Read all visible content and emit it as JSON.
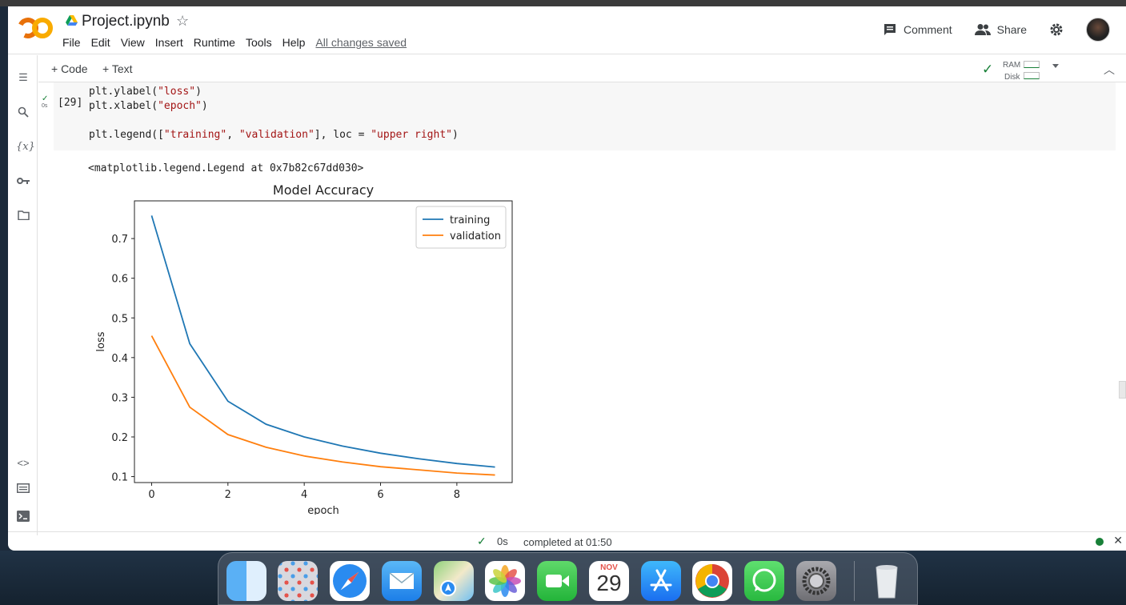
{
  "app": {
    "title": "Project.ipynb",
    "menu": [
      "File",
      "Edit",
      "View",
      "Insert",
      "Runtime",
      "Tools",
      "Help"
    ],
    "saved_status": "All changes saved",
    "comment_label": "Comment",
    "share_label": "Share"
  },
  "toolbar": {
    "add_code": "+ Code",
    "add_text": "+ Text",
    "ram_label": "RAM",
    "disk_label": "Disk"
  },
  "cell": {
    "exec_count": "[29]",
    "run_time": "0s",
    "lines": {
      "l1_pre": "plt.ylabel(",
      "l1_str": "\"loss\"",
      "l1_post": ")",
      "l2_pre": "plt.xlabel(",
      "l2_str": "\"epoch\"",
      "l2_post": ")",
      "l3_pre": "plt.legend([",
      "l3_s1": "\"training\"",
      "l3_mid": ", ",
      "l3_s2": "\"validation\"",
      "l3_mid2": "], loc = ",
      "l3_s3": "\"upper right\"",
      "l3_post": ")"
    },
    "output_text": "<matplotlib.legend.Legend at 0x7b82c67dd030>"
  },
  "chart_data": {
    "type": "line",
    "title": "Model Accuracy",
    "xlabel": "epoch",
    "ylabel": "loss",
    "x": [
      0,
      1,
      2,
      3,
      4,
      5,
      6,
      7,
      8,
      9
    ],
    "xticks": [
      0,
      2,
      4,
      6,
      8
    ],
    "yticks": [
      0.1,
      0.2,
      0.3,
      0.4,
      0.5,
      0.6,
      0.7
    ],
    "xlim": [
      -0.45,
      9.45
    ],
    "ylim": [
      0.085,
      0.795
    ],
    "legend_position": "upper right",
    "series": [
      {
        "name": "training",
        "color": "#1f77b4",
        "values": [
          0.758,
          0.435,
          0.29,
          0.232,
          0.2,
          0.177,
          0.159,
          0.145,
          0.133,
          0.124
        ]
      },
      {
        "name": "validation",
        "color": "#ff7f0e",
        "values": [
          0.455,
          0.275,
          0.206,
          0.174,
          0.152,
          0.137,
          0.125,
          0.117,
          0.109,
          0.104
        ]
      }
    ]
  },
  "status": {
    "time": "0s",
    "completed": "completed at 01:50"
  },
  "dock": {
    "calendar_month": "NOV",
    "calendar_day": "29",
    "apps": [
      "finder-icon",
      "launchpad-icon",
      "safari-icon",
      "mail-icon",
      "maps-icon",
      "photos-icon",
      "facetime-icon",
      "calendar-icon",
      "app-store-icon",
      "chrome-icon",
      "whatsapp-icon",
      "system-settings-icon",
      "trash-icon"
    ]
  }
}
